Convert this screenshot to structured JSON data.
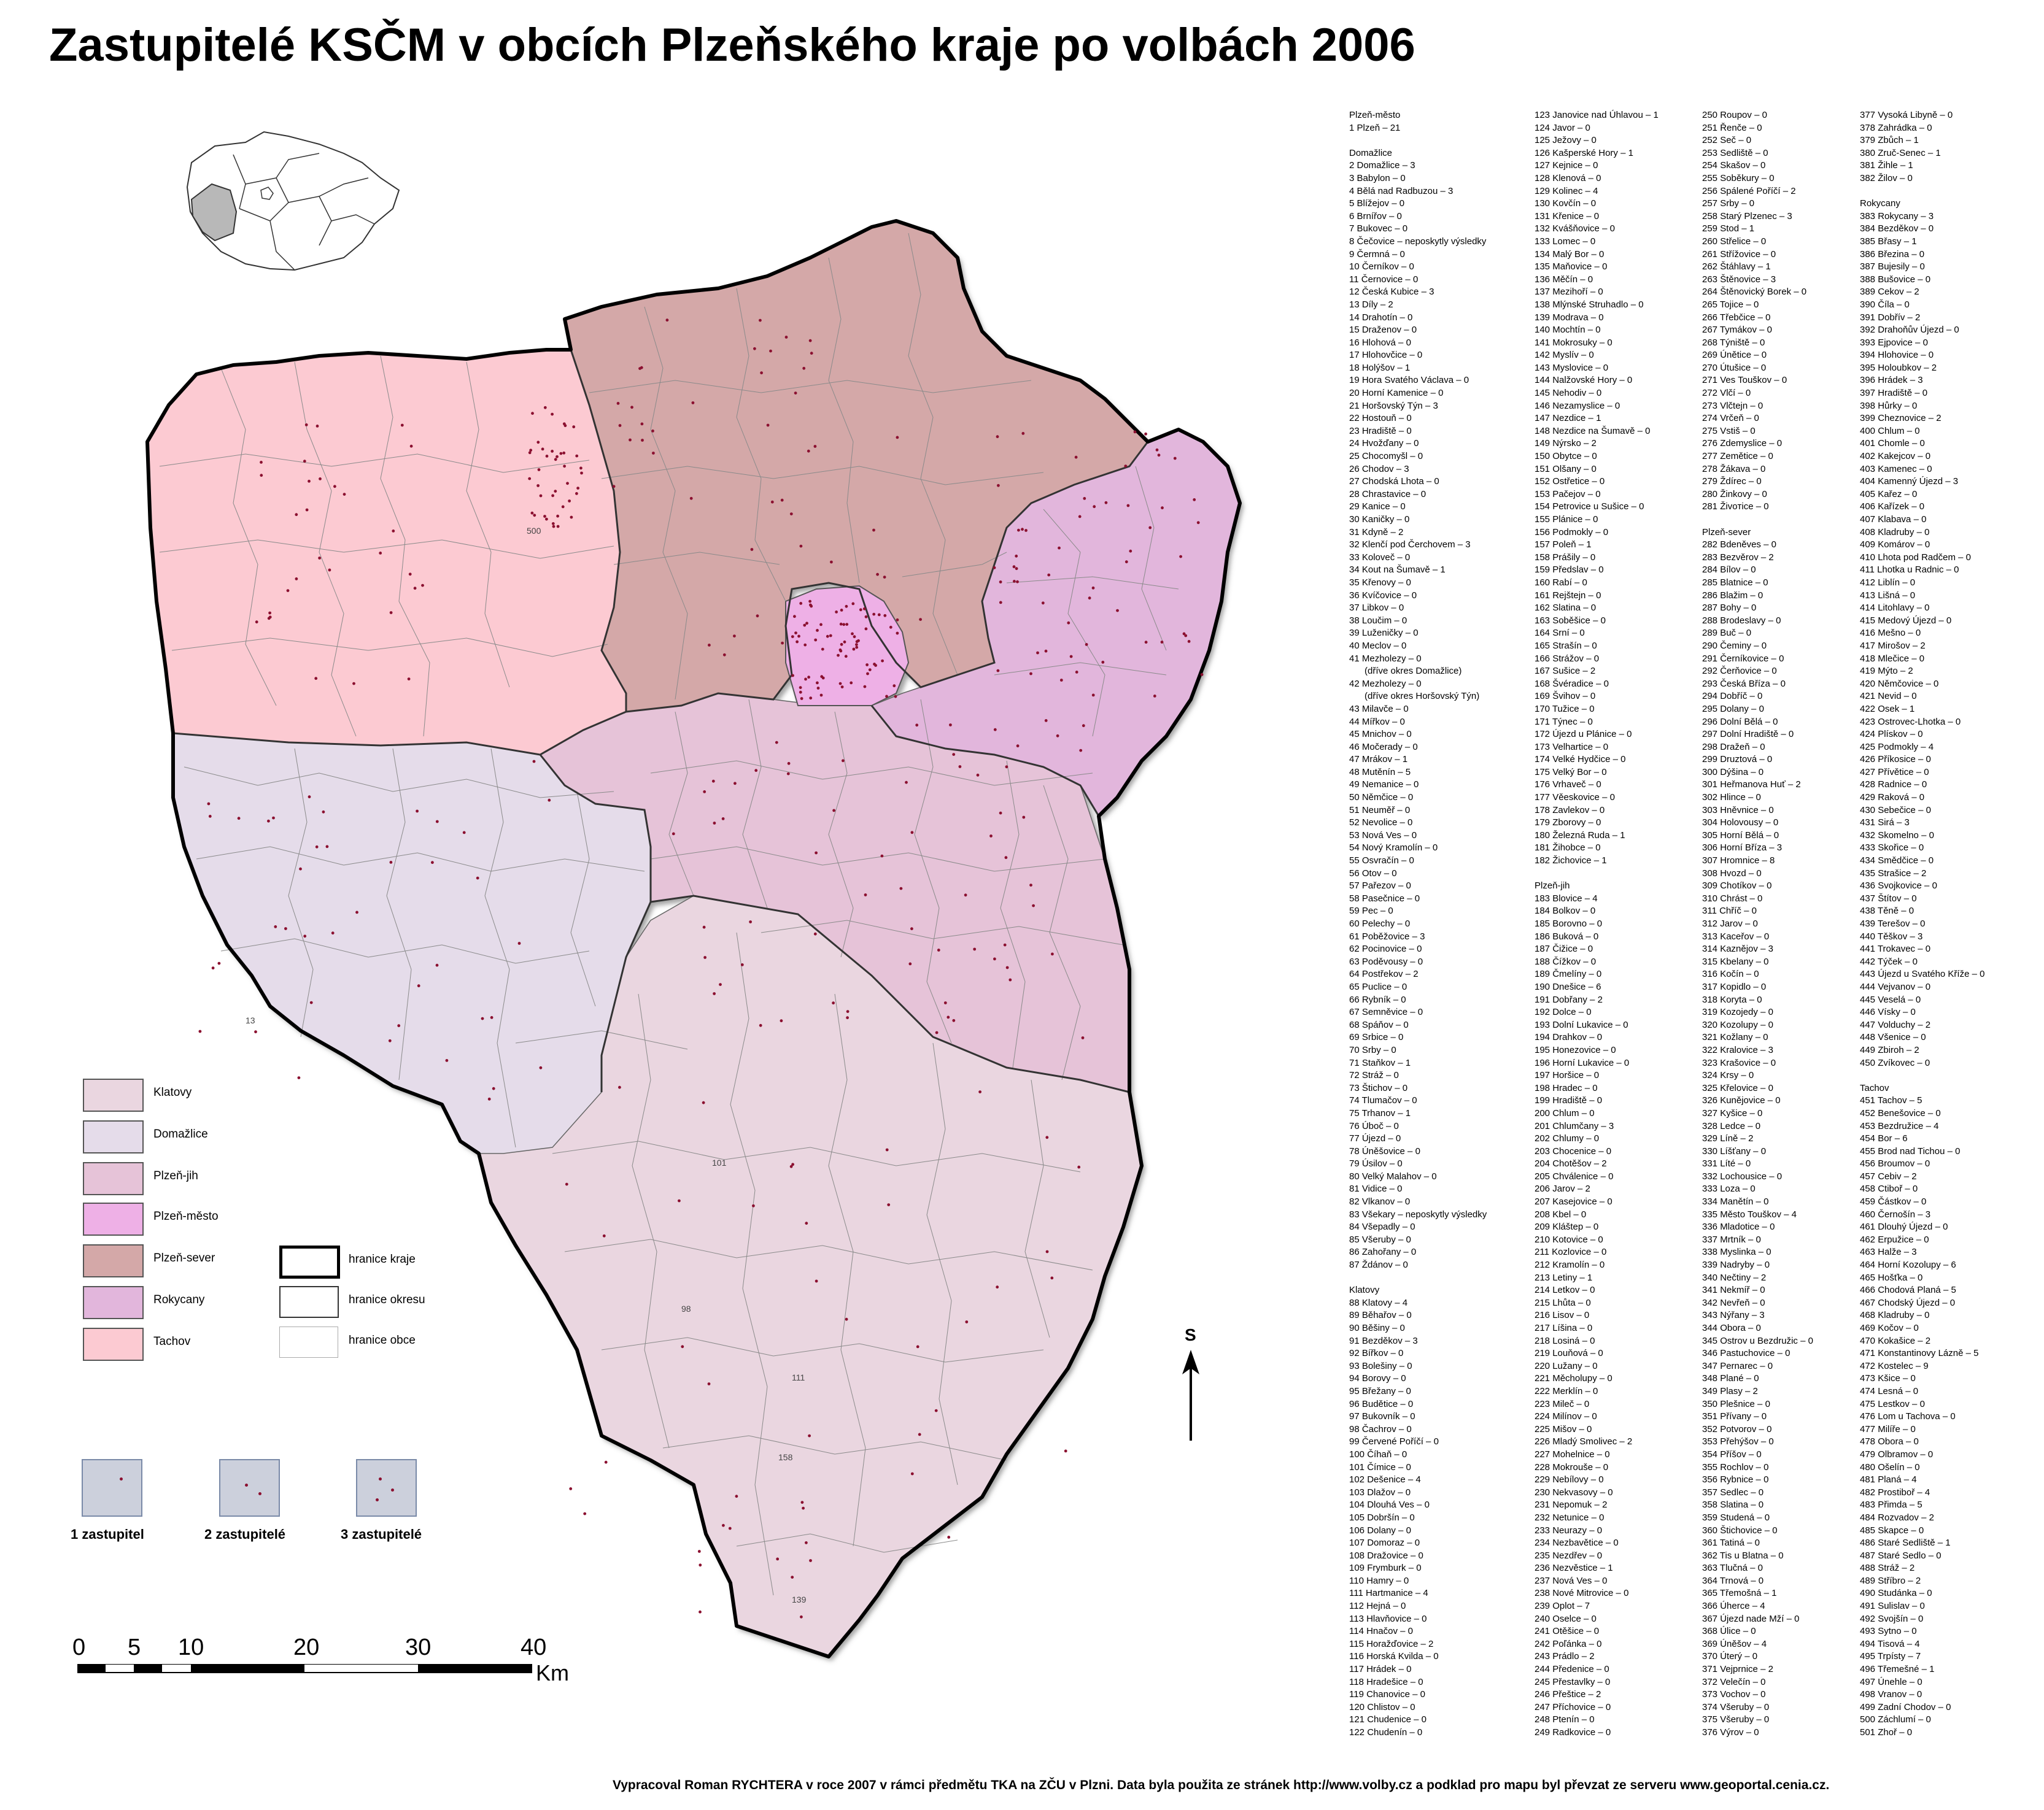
{
  "title": "Zastupitelé KSČM v obcích Plzeňského kraje po volbách 2006",
  "colors": {
    "Klatovy": "#ead6e0",
    "Domažlice": "#e5dcea",
    "Plzeň-jih": "#e6c3d8",
    "Plzeň-město": "#eeb0e6",
    "Plzeň-sever": "#d4a8a8",
    "Rokycany": "#e2b6dc",
    "Tachov": "#fccad2",
    "dot": "#8b1030",
    "inset_highlight": "#b8b8b8"
  },
  "map": {
    "district_labels_on_map": [
      "500",
      "13",
      "101",
      "139",
      "158",
      "98",
      "111"
    ]
  },
  "legend": {
    "districts": [
      "Klatovy",
      "Domažlice",
      "Plzeň-jih",
      "Plzeň-město",
      "Plzeň-sever",
      "Rokycany",
      "Tachov"
    ],
    "boundaries": [
      "hranice kraje",
      "hranice okresu",
      "hranice obce"
    ],
    "dot_counts": [
      "1 zastupitel",
      "2 zastupitelé",
      "3 zastupitelé"
    ]
  },
  "scale": {
    "ticks": [
      "0",
      "5",
      "10",
      "20",
      "30",
      "40"
    ],
    "unit": "Km"
  },
  "north_arrow": {
    "label": "S",
    "icon": "north-arrow-icon"
  },
  "index": {
    "col1": [
      "Plzeň-město",
      "1 Plzeň – 21",
      "",
      "Domažlice",
      "2 Domažlice – 3",
      "3 Babylon – 0",
      "4 Bělá nad Radbuzou – 3",
      "5 Blížejov – 0",
      "6 Brnířov – 0",
      "7 Bukovec – 0",
      "8 Čečovice – neposkytly výsledky",
      "9 Čermná – 0",
      "10 Černíkov – 0",
      "11 Černovice – 0",
      "12 Česká Kubice – 3",
      "13 Díly – 2",
      "14 Drahotín – 0",
      "15 Draženov – 0",
      "16 Hlohová – 0",
      "17 Hlohovčice – 0",
      "18 Holýšov – 1",
      "19 Hora Svatého Václava – 0",
      "20 Horní Kamenice – 0",
      "21 Horšovský Týn – 3",
      "22 Hostouň – 0",
      "23 Hradiště – 0",
      "24 Hvožďany – 0",
      "25 Chocomyšl – 0",
      "26 Chodov – 3",
      "27 Chodská Lhota – 0",
      "28 Chrastavice – 0",
      "29 Kanice – 0",
      "30 Kaničky – 0",
      "31 Kdyně – 2",
      "32 Klenčí pod Čerchovem – 3",
      "33 Koloveč – 0",
      "34 Kout na Šumavě – 1",
      "35 Křenovy – 0",
      "36 Kvíčovice – 0",
      "37 Libkov – 0",
      "38 Loučim – 0",
      "39 Luženičky – 0",
      "40 Meclov – 0",
      "41 Mezholezy – 0",
      "      (dříve okres Domažlice)",
      "42 Mezholezy – 0",
      "      (dříve okres Horšovský Týn)",
      "43 Milavče – 0",
      "44 Mířkov – 0",
      "45 Mnichov – 0",
      "46 Močerady – 0",
      "47 Mrákov – 1",
      "48 Mutěnín – 5",
      "49 Nemanice – 0",
      "50 Němčice – 0",
      "51 Neuměř – 0",
      "52 Nevolice – 0",
      "53 Nová Ves – 0",
      "54 Nový Kramolín – 0",
      "55 Osvračín – 0",
      "56 Otov – 0",
      "57 Pařezov – 0",
      "58 Pasečnice – 0",
      "59 Pec – 0",
      "60 Pelechy – 0",
      "61 Poběžovice – 3",
      "62 Pocinovice – 0",
      "63 Poděvousy – 0",
      "64 Postřekov – 2",
      "65 Puclice – 0",
      "66 Rybník – 0",
      "67 Semněvice – 0",
      "68 Spáňov – 0",
      "69 Srbice – 0",
      "70 Srby – 0",
      "71 Staňkov – 1",
      "72 Stráž – 0",
      "73 Štichov – 0",
      "74 Tlumačov – 0",
      "75 Trhanov – 1",
      "76 Úboč – 0",
      "77 Újezd – 0",
      "78 Úněšovice – 0",
      "79 Úsilov – 0",
      "80 Velký Malahov – 0",
      "81 Vidice – 0",
      "82 Vlkanov – 0",
      "83 Všekary – neposkytly výsledky",
      "84 Všepadly – 0",
      "85 Všeruby – 0",
      "86 Zahořany – 0",
      "87 Ždánov – 0",
      "",
      "Klatovy",
      "88 Klatovy – 4",
      "89 Běhařov – 0",
      "90 Běšiny – 0",
      "91 Bezděkov – 3",
      "92 Bířkov – 0",
      "93 Bolešiny – 0",
      "94 Borovy – 0",
      "95 Břežany – 0",
      "96 Budětice – 0",
      "97 Bukovník – 0",
      "98 Čachrov – 0",
      "99 Červené Poříčí – 0",
      "100 Číhaň – 0",
      "101 Čímice – 0",
      "102 Dešenice – 4",
      "103 Dlažov – 0",
      "104 Dlouhá Ves – 0",
      "105 Dobršín – 0",
      "106 Dolany – 0",
      "107 Domoraz – 0",
      "108 Dražovice – 0",
      "109 Frymburk – 0",
      "110 Hamry – 0",
      "111 Hartmanice – 4",
      "112 Hejná – 0",
      "113 Hlavňovice – 0",
      "114 Hnačov – 0",
      "115 Horažďovice – 2",
      "116 Horská Kvilda – 0",
      "117 Hrádek – 0",
      "118 Hradešice – 0",
      "119 Chanovice – 0",
      "120 Chlistov – 0",
      "121 Chudenice – 0",
      "122 Chudenín – 0"
    ],
    "col2": [
      "123 Janovice nad Úhlavou – 1",
      "124 Javor – 0",
      "125 Ježovy – 0",
      "126 Kašperské Hory – 1",
      "127 Kejnice – 0",
      "128 Klenová – 0",
      "129 Kolinec – 4",
      "130 Kovčín – 0",
      "131 Křenice – 0",
      "132 Kvášňovice – 0",
      "133 Lomec – 0",
      "134 Malý Bor – 0",
      "135 Maňovice – 0",
      "136 Měčín – 0",
      "137 Mezihoří – 0",
      "138 Mlýnské Struhadlo – 0",
      "139 Modrava – 0",
      "140 Mochtín – 0",
      "141 Mokrosuky – 0",
      "142 Myslív – 0",
      "143 Myslovice – 0",
      "144 Nalžovské Hory – 0",
      "145 Nehodiv – 0",
      "146 Nezamyslice – 0",
      "147 Nezdice – 1",
      "148 Nezdice na Šumavě – 0",
      "149 Nýrsko – 2",
      "150 Obytce – 0",
      "151 Olšany – 0",
      "152 Ostřetice – 0",
      "153 Pačejov – 0",
      "154 Petrovice u Sušice – 0",
      "155 Plánice – 0",
      "156 Podmokly – 0",
      "157 Poleň – 1",
      "158 Prášily – 0",
      "159 Předslav – 0",
      "160 Rabí – 0",
      "161 Rejštejn – 0",
      "162 Slatina – 0",
      "163 Soběšice – 0",
      "164 Srní – 0",
      "165 Strašín – 0",
      "166 Strážov – 0",
      "167 Sušice – 2",
      "168 Švéradice – 0",
      "169 Švihov – 0",
      "170 Tužice – 0",
      "171 Týnec – 0",
      "172 Újezd u Plánice – 0",
      "173 Velhartice – 0",
      "174 Velké Hydčice – 0",
      "175 Velký Bor – 0",
      "176 Vrhaveč – 0",
      "177 Věeskovice – 0",
      "178 Zavlekov – 0",
      "179 Zborovy – 0",
      "180 Železná Ruda – 1",
      "181 Žihobce – 0",
      "182 Žichovice – 1",
      "",
      "Plzeň-jih",
      "183 Blovice – 4",
      "184 Bolkov – 0",
      "185 Borovno – 0",
      "186 Buková – 0",
      "187 Čižice – 0",
      "188 Čížkov – 0",
      "189 Čmelíny – 0",
      "190 Dnešice – 6",
      "191 Dobřany – 2",
      "192 Dolce – 0",
      "193 Dolní Lukavice – 0",
      "194 Drahkov – 0",
      "195 Honezovice – 0",
      "196 Horní Lukavice – 0",
      "197 Horšice – 0",
      "198 Hradec – 0",
      "199 Hradiště – 0",
      "200 Chlum – 0",
      "201 Chlumčany – 3",
      "202 Chlumy – 0",
      "203 Chocenice – 0",
      "204 Chotěšov – 2",
      "205 Chválenice – 0",
      "206 Jarov – 2",
      "207 Kasejovice – 0",
      "208 Kbel – 0",
      "209 Kláštер – 0",
      "210 Kotovice – 0",
      "211 Kozlovice – 0",
      "212 Kramolín – 0",
      "213 Letiny – 1",
      "214 Letkov – 0",
      "215 Lhůta – 0",
      "216 Lisov – 0",
      "217 Líšina – 0",
      "218 Losiná – 0",
      "219 Louňová – 0",
      "220 Lužany – 0",
      "221 Měcholupy – 0",
      "222 Merklín – 0",
      "223 Mileč – 0",
      "224 Milínov – 0",
      "225 Mišov – 0",
      "226 Mladý Smolivec – 2",
      "227 Mohelnice – 0",
      "228 Mokrouše – 0",
      "229 Nebílovy – 0",
      "230 Nekvasovy – 0",
      "231 Nepomuk – 2",
      "232 Netunice – 0",
      "233 Neurazy – 0",
      "234 Nezbavětice – 0",
      "235 Nezdřev – 0",
      "236 Nezvěstice – 1",
      "237 Nová Ves – 0",
      "238 Nové Mitrovice – 0",
      "239 Oplot – 7",
      "240 Oselce – 0",
      "241 Otěšice – 0",
      "242 Poľánka – 0",
      "243 Prádlo – 2",
      "244 Předenice – 0",
      "245 Přestavlky – 0",
      "246 Přeštice – 2",
      "247 Příchovice – 0",
      "248 Ptenín – 0",
      "249 Radkovice – 0"
    ],
    "col3": [
      "250 Roupov – 0",
      "251 Řenče – 0",
      "252 Seč – 0",
      "253 Sedliště – 0",
      "254 Skašov – 0",
      "255 Soběkury – 0",
      "256 Spálené Poříčí – 2",
      "257 Srby – 0",
      "258 Starý Plzenec – 3",
      "259 Stod – 1",
      "260 Střelice – 0",
      "261 Střížovice – 0",
      "262 Štáhlavy – 1",
      "263 Štěnovice – 3",
      "264 Štěnovický Borek – 0",
      "265 Tojice – 0",
      "266 Třebčice – 0",
      "267 Tymákov – 0",
      "268 Týniště – 0",
      "269 Únětice – 0",
      "270 Útušice – 0",
      "271 Ves Touškov – 0",
      "272 Vlčí – 0",
      "273 Vlčtejn – 0",
      "274 Vrčeň – 0",
      "275 Vstiš – 0",
      "276 Zdemyslice – 0",
      "277 Zemětice – 0",
      "278 Žákava – 0",
      "279 Ždírec – 0",
      "280 Žinkovy – 0",
      "281 Živoтice – 0",
      "",
      "Plzeň-sever",
      "282 Bdeněves – 0",
      "283 Bezvěrov – 2",
      "284 Bílov – 0",
      "285 Blatnice – 0",
      "286 Blažim – 0",
      "287 Bohy – 0",
      "288 Brodeslavy – 0",
      "289 Buč – 0",
      "290 Čeminy – 0",
      "291 Černíkovice – 0",
      "292 Čerňovice – 0",
      "293 Česká Bříza – 0",
      "294 Dobříč – 0",
      "295 Dolany – 0",
      "296 Dolní Bělá – 0",
      "297 Dolní Hradiště – 0",
      "298 Dražeň – 0",
      "299 Druztová – 0",
      "300 Dýšina – 0",
      "301 Heřmanova Huť – 2",
      "302 Hlince – 0",
      "303 Hněvnice – 0",
      "304 Holovousy – 0",
      "305 Horní Bělá – 0",
      "306 Horní Bříza – 3",
      "307 Hromnice – 8",
      "308 Hvozd – 0",
      "309 Chotíkov – 0",
      "310 Chrást – 0",
      "311 Chříč – 0",
      "312 Jarov – 0",
      "313 Kaceřov – 0",
      "314 Kaznějov – 3",
      "315 Kbelany – 0",
      "316 Kočín – 0",
      "317 Kopidlo – 0",
      "318 Koryta – 0",
      "319 Kozojedy – 0",
      "320 Kozolupy – 0",
      "321 Kožlany – 0",
      "322 Kralovice – 3",
      "323 Krašovice – 0",
      "324 Krsy – 0",
      "325 Křelovice – 0",
      "326 Kunějovice – 0",
      "327 Kyšice – 0",
      "328 Ledce – 0",
      "329 Líně – 2",
      "330 Líšťany – 0",
      "331 Líté – 0",
      "332 Lochousice – 0",
      "333 Loza – 0",
      "334 Manětín – 0",
      "335 Město Touškov – 4",
      "336 Mladotice – 0",
      "337 Mrtník – 0",
      "338 Myslinka – 0",
      "339 Nadryby – 0",
      "340 Nečtiny – 2",
      "341 Nekmíř – 0",
      "342 Nevřeň – 0",
      "343 Nýřany – 3",
      "344 Obora – 0",
      "345 Ostrov u Bezdružic – 0",
      "346 Pastuchovice – 0",
      "347 Pernarec – 0",
      "348 Plané – 0",
      "349 Plasy – 2",
      "350 Plešnice – 0",
      "351 Přívany – 0",
      "352 Potvorov – 0",
      "353 Přehýšov – 0",
      "354 Příšov – 0",
      "355 Rochlov – 0",
      "356 Rybnice – 0",
      "357 Sedlec – 0",
      "358 Slatina – 0",
      "359 Studená – 0",
      "360 Štichovice – 0",
      "361 Tatiná – 0",
      "362 Tis u Blatna – 0",
      "363 Tlučná – 0",
      "364 Trnová – 0",
      "365 Třemošná – 1",
      "366 Úherce – 4",
      "367 Újezd nade Mží – 0",
      "368 Úlice – 0",
      "369 Úněšov – 4",
      "370 Úterý – 0",
      "371 Vejprnice – 2",
      "372 Velečín – 0",
      "373 Vochov – 0",
      "374 Všeruby – 0",
      "375 Všeruby – 0",
      "376 Výrov – 0"
    ],
    "col4": [
      "377 Vysoká Libyně – 0",
      "378 Zahrádka – 0",
      "379 Zbůch – 1",
      "380 Zruč-Senec – 1",
      "381 Žihle – 1",
      "382 Žilov – 0",
      "",
      "Rokycany",
      "383 Rokycany – 3",
      "384 Bezděkov – 0",
      "385 Břasy – 1",
      "386 Březina – 0",
      "387 Bujesily – 0",
      "388 Bušovice – 0",
      "389 Cekov – 2",
      "390 Číla – 0",
      "391 Dobřív – 2",
      "392 Drahoňův Újezd – 0",
      "393 Ejpovice – 0",
      "394 Hlohovice – 0",
      "395 Holoubkov – 2",
      "396 Hrádek – 3",
      "397 Hradiště – 0",
      "398 Hůrky – 0",
      "399 Cheznovice – 2",
      "400 Chlum – 0",
      "401 Chomle – 0",
      "402 Kakejcov – 0",
      "403 Kamenec – 0",
      "404 Kamenný Újezd – 3",
      "405 Kařez – 0",
      "406 Kařízek – 0",
      "407 Klabava – 0",
      "408 Kladruby – 0",
      "409 Komárov – 0",
      "410 Lhota pod Radčem – 0",
      "411 Lhotka u Radnic – 0",
      "412 Liblín – 0",
      "413 Lišná – 0",
      "414 Litohlavy – 0",
      "415 Medový Újezd – 0",
      "416 Mešno – 0",
      "417 Mirošov – 2",
      "418 Mlečice – 0",
      "419 Mýto – 2",
      "420 Němčovice – 0",
      "421 Nevid – 0",
      "422 Osek – 1",
      "423 Ostrovec-Lhotka – 0",
      "424 Plískov – 0",
      "425 Podmokly – 4",
      "426 Příkosice – 0",
      "427 Přívětice – 0",
      "428 Radnice – 0",
      "429 Raková – 0",
      "430 Sebečice – 0",
      "431 Sirá – 3",
      "432 Skomelno – 0",
      "433 Skořice – 0",
      "434 Smědčice – 0",
      "435 Strašice – 2",
      "436 Svojkovice – 0",
      "437 Štítov – 0",
      "438 Těně – 0",
      "439 Terešov – 0",
      "440 Těškov – 3",
      "441 Trokavec – 0",
      "442 Týček – 0",
      "443 Újezd u Svatého Kříže – 0",
      "444 Vejvanov – 0",
      "445 Veselá – 0",
      "446 Vísky – 0",
      "447 Volduchy – 2",
      "448 Všenice – 0",
      "449 Zbiroh – 2",
      "450 Zvíkovec – 0",
      "",
      "Tachov",
      "451 Tachov – 5",
      "452 Benešovice – 0",
      "453 Bezdružice – 4",
      "454 Bor – 6",
      "455 Brod nad Tichou – 0",
      "456 Broumov – 0",
      "457 Cebiv – 2",
      "458 Ctiboř – 0",
      "459 Částkov – 0",
      "460 Černošín – 3",
      "461 Dlouhý Újezd – 0",
      "462 Erpužice – 0",
      "463 Halže – 3",
      "464 Horní Kozolupy – 6",
      "465 Hošťka – 0",
      "466 Chodová Planá – 5",
      "467 Chodský Újezd – 0",
      "468 Kladruby – 0",
      "469 Kočov – 0",
      "470 Kokašice – 2",
      "471 Konstantinovy Lázně – 5",
      "472 Kostelec – 9",
      "473 Kšice – 0",
      "474 Lesná – 0",
      "475 Lestkov – 0",
      "476 Lom u Tachova – 0",
      "477 Milíře – 0",
      "478 Obora – 0",
      "479 Olbramov – 0",
      "480 Ošelín – 0",
      "481 Planá – 4",
      "482 Prostiboř – 4",
      "483 Přimda – 5",
      "484 Rozvadov – 2",
      "485 Skapce – 0",
      "486 Staré Sedliště – 1",
      "487 Staré Sedlo – 0",
      "488 Stráž – 2",
      "489 Stříbro – 2",
      "490 Studánka – 0",
      "491 Sulislav – 0",
      "492 Svojšín – 0",
      "493 Sytno – 0",
      "494 Tisová – 4",
      "495 Trpísty – 7",
      "496 Třemešné – 1",
      "497 Únehle – 0",
      "498 Vranov – 0",
      "499 Zadní Chodov – 0",
      "500 Záchlumí – 0",
      "501 Zhoř – 0"
    ]
  },
  "footer": "Vypracoval Roman RYCHTERA v roce 2007 v rámci předmětu TKA na ZČU v Plzni. Data byla použita ze stránek http://www.volby.cz a podklad pro mapu byl převzat ze serveru www.geoportal.cenia.cz."
}
